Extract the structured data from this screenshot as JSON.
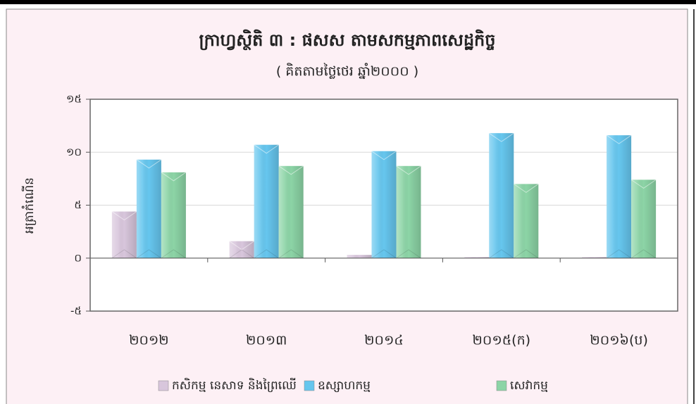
{
  "chart_data": {
    "type": "bar",
    "title": "ក្រាហ្វស្ថិតិ ៣ : ផសស តាមសកម្មភាពសេដ្ឋកិច្ច",
    "subtitle": "( គិតតាមថ្លៃថេរ ឆ្នាំ២០០០ )",
    "y_label": "អត្រាកំណើន",
    "categories": [
      "២០១២",
      "២០១៣",
      "២០១៤",
      "២០១៥(ក)",
      "២០១៦(ប)"
    ],
    "series": [
      {
        "name": "កសិកម្ម នេសាទ និងព្រៃឈើ",
        "color": "#d8c6dc",
        "values": [
          4.4,
          1.6,
          0.3,
          0.1,
          0.1
        ]
      },
      {
        "name": "ឧស្សាហកម្ម",
        "color": "#66c6ee",
        "values": [
          9.3,
          10.7,
          10.1,
          11.8,
          11.6
        ]
      },
      {
        "name": "សេវាកម្ម",
        "color": "#8cd4a6",
        "values": [
          8.1,
          8.7,
          8.7,
          7.0,
          7.4
        ]
      }
    ],
    "ylim": [
      -5,
      15
    ],
    "yticks": [
      {
        "value": -5,
        "label": "-៥"
      },
      {
        "value": 0,
        "label": "០"
      },
      {
        "value": 5,
        "label": "៥"
      },
      {
        "value": 10,
        "label": "១០"
      },
      {
        "value": 15,
        "label": "១៥"
      }
    ],
    "grid": true,
    "legend": "bottom"
  }
}
